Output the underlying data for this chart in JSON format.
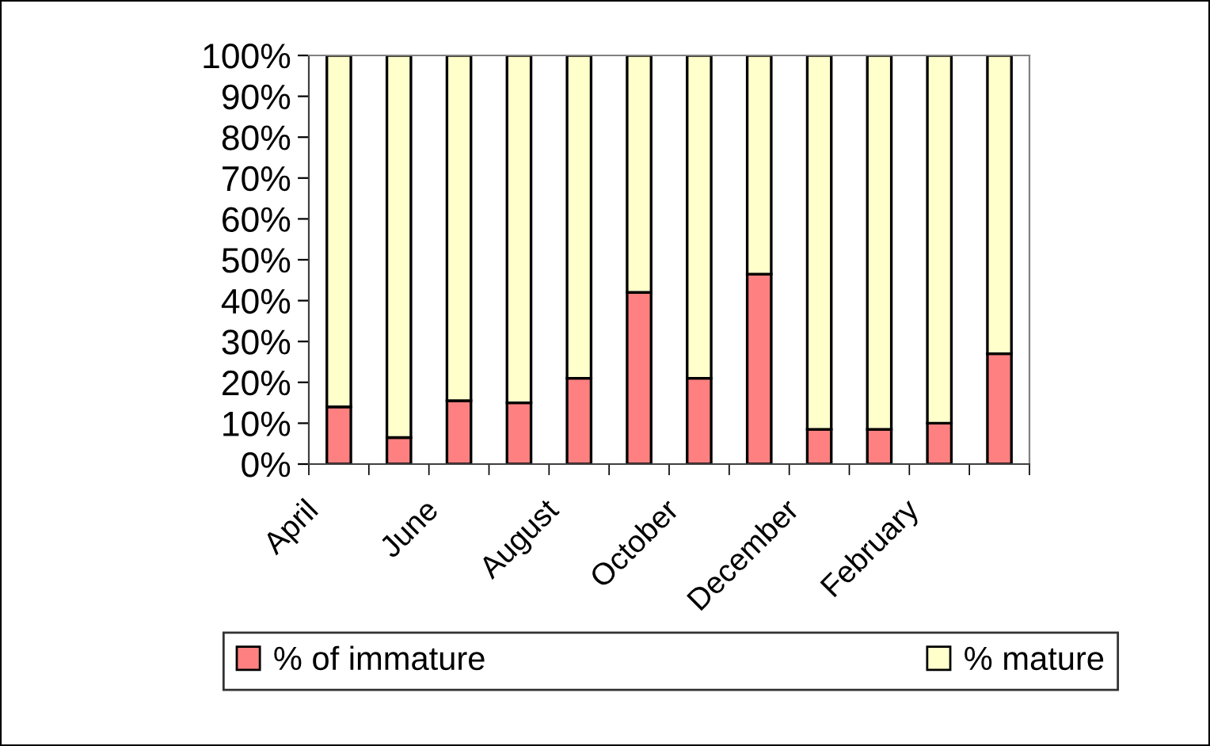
{
  "chart_data": {
    "type": "bar",
    "stacked": true,
    "categories": [
      "April",
      null,
      "June",
      null,
      "August",
      null,
      "October",
      null,
      "December",
      null,
      "February",
      null
    ],
    "series": [
      {
        "name": "% of immature",
        "color": "#ff8080",
        "values": [
          14,
          6.5,
          15.5,
          15,
          21,
          42,
          21,
          46.5,
          8.5,
          8.5,
          10,
          27
        ]
      },
      {
        "name": "% mature",
        "color": "#ffffcc",
        "values": [
          86,
          93.5,
          84.5,
          85,
          79,
          58,
          79,
          53.5,
          91.5,
          91.5,
          90,
          73
        ]
      }
    ],
    "ylim": [
      0,
      100
    ],
    "yticks": [
      {
        "value": 0,
        "label": "0%"
      },
      {
        "value": 10,
        "label": "10%"
      },
      {
        "value": 20,
        "label": "20%"
      },
      {
        "value": 30,
        "label": "30%"
      },
      {
        "value": 40,
        "label": "40%"
      },
      {
        "value": 50,
        "label": "50%"
      },
      {
        "value": 60,
        "label": "60%"
      },
      {
        "value": 70,
        "label": "70%"
      },
      {
        "value": 80,
        "label": "80%"
      },
      {
        "value": 90,
        "label": "90%"
      },
      {
        "value": 100,
        "label": "100%"
      }
    ],
    "grid": false,
    "legend": "bottom"
  }
}
